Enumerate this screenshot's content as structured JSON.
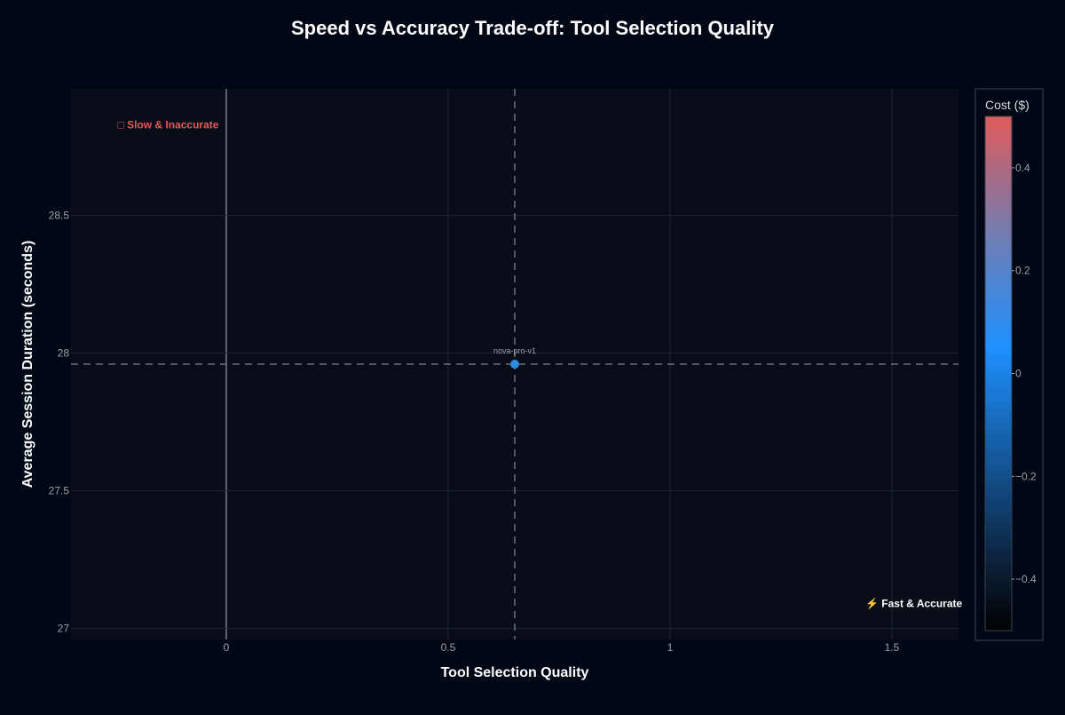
{
  "chart_data": {
    "type": "scatter",
    "title": "Speed vs Accuracy Trade-off: Tool Selection Quality",
    "xlabel": "Tool Selection Quality",
    "ylabel": "Average Session Duration (seconds)",
    "xlim": [
      -0.35,
      1.65
    ],
    "ylim": [
      26.96,
      28.96
    ],
    "x_ticks": [
      0,
      0.5,
      1,
      1.5
    ],
    "x_tick_labels": [
      "0",
      "0.5",
      "1",
      "1.5"
    ],
    "y_ticks": [
      27,
      27.5,
      28,
      28.5
    ],
    "y_tick_labels": [
      "27",
      "27.5",
      "28",
      "28.5"
    ],
    "grid": true,
    "points": [
      {
        "label": "nova-pro-v1",
        "x": 0.65,
        "y": 27.96,
        "cost": 0
      }
    ],
    "reference_lines": {
      "x": 0.65,
      "y": 27.96
    },
    "annotations": [
      {
        "text": "□ Slow & Inaccurate",
        "x": -0.245,
        "y": 28.83,
        "color": "#e05a5a"
      },
      {
        "text": "⚡ Fast & Accurate",
        "x": 1.44,
        "y": 27.09,
        "color": "#ffffff"
      }
    ],
    "colorbar": {
      "title": "Cost ($)",
      "range": [
        -0.5,
        0.5
      ],
      "ticks": [
        0.4,
        0.2,
        0,
        -0.2,
        -0.4
      ],
      "tick_labels": [
        "0.4",
        "0.2",
        "0",
        "−0.2",
        "−0.4"
      ],
      "colors": [
        "#000000",
        "#1e90ff",
        "#e05a5a"
      ]
    },
    "colors": {
      "background": "#000816",
      "plot_background": "#080d18",
      "grid": "#1f2533",
      "marker": "#2a8ee0",
      "reference_line": "#6b7280",
      "zero_line": "#5a6070",
      "text": "#ffffff",
      "tick_text": "#9aa0aa"
    }
  }
}
